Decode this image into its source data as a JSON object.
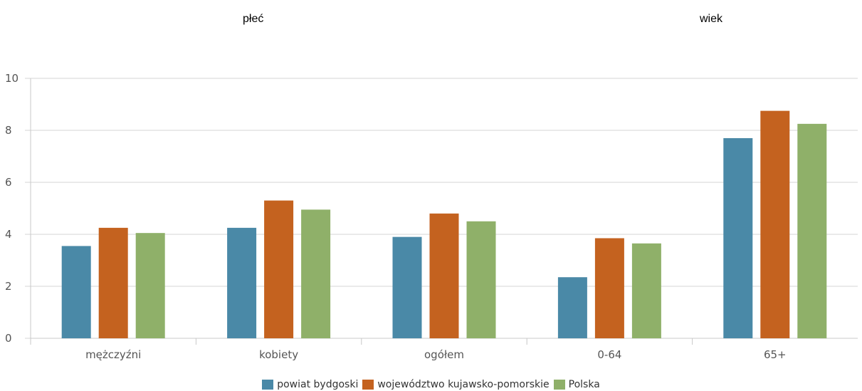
{
  "groups": [
    {
      "label": "płeć"
    },
    {
      "label": "wiek"
    }
  ],
  "chart_data": {
    "type": "bar",
    "categories": [
      "mężczyźni",
      "kobiety",
      "ogółem",
      "0-64",
      "65+"
    ],
    "series": [
      {
        "name": "powiat bydgoski",
        "color": "#4a89a7",
        "values": [
          3.55,
          4.25,
          3.9,
          2.35,
          7.7
        ]
      },
      {
        "name": "województwo kujawsko-pomorskie",
        "color": "#c4621f",
        "values": [
          4.25,
          5.3,
          4.8,
          3.85,
          8.75
        ]
      },
      {
        "name": "Polska",
        "color": "#8fb069",
        "values": [
          4.05,
          4.95,
          4.5,
          3.65,
          8.25
        ]
      }
    ],
    "yticks": [
      "0",
      "2",
      "4",
      "6",
      "8",
      "10"
    ],
    "ylim": [
      0,
      10
    ],
    "grid": true,
    "legend_position": "bottom"
  }
}
